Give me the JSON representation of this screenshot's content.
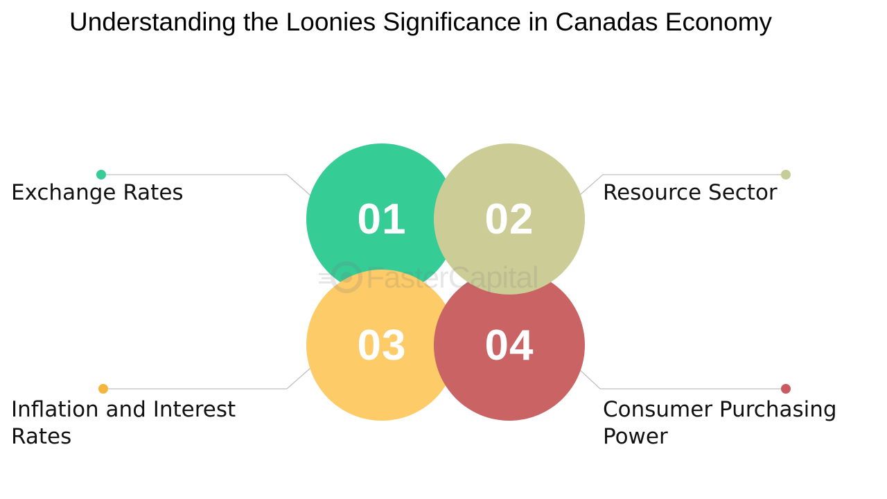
{
  "title": "Understanding the Loonies Significance in Canadas Economy",
  "watermark": "FasterCapital",
  "items": [
    {
      "number": "01",
      "label": "Exchange Rates",
      "color": "#36cc96",
      "dot_color": "#36cc96"
    },
    {
      "number": "02",
      "label": "Resource Sector",
      "color": "#cccd96",
      "dot_color": "#c8cc96"
    },
    {
      "number": "03",
      "label": "Inflation and Interest Rates",
      "color": "#fdcb68",
      "dot_color": "#f4b53d"
    },
    {
      "number": "04",
      "label": "Consumer Purchasing Power",
      "color": "#c96364",
      "dot_color": "#c95a5f"
    }
  ],
  "connector_color": "#bdbdbd"
}
